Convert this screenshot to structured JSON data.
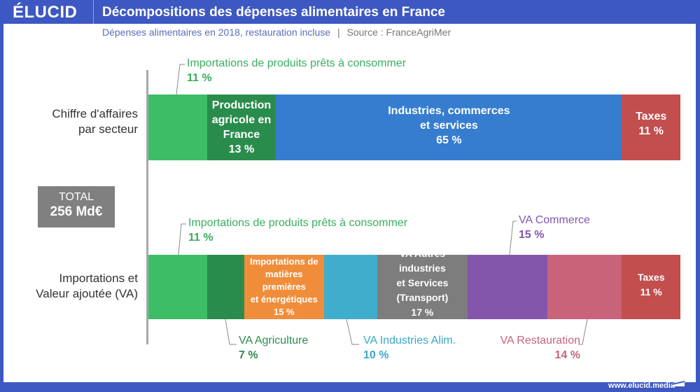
{
  "header": {
    "logo": "ÉLUCID",
    "title": "Décompositions des dépenses alimentaires en France",
    "subtitle": "Dépenses alimentaires en 2018, restauration incluse",
    "separator": "|",
    "source": "Source : FranceAgriMer"
  },
  "total": {
    "label": "TOTAL",
    "value": "256 Md€"
  },
  "footer": {
    "url": "www.elucid.media"
  },
  "chart_data": {
    "type": "stacked-bar-horizontal",
    "title": "Décompositions des dépenses alimentaires en France",
    "unit": "%",
    "total": "256 Md€",
    "bars": [
      {
        "name": "Chiffre d'affaires par secteur",
        "label_lines": [
          "Chiffre d'affaires",
          "par secteur"
        ],
        "segments": [
          {
            "name": "Importations de produits prêts à consommer",
            "value": 11,
            "pct_label": "11 %",
            "color": "#3dbd66",
            "label_position": "callout-above"
          },
          {
            "name": "Production agricole en France",
            "lines": [
              "Production",
              "agricole en",
              "France"
            ],
            "value": 13,
            "pct_label": "13 %",
            "color": "#2a8c4c",
            "label_position": "inside"
          },
          {
            "name": "Industries, commerces et services",
            "lines": [
              "Industries, commerces",
              "et services"
            ],
            "value": 65,
            "pct_label": "65 %",
            "color": "#367dd0",
            "label_position": "inside"
          },
          {
            "name": "Taxes",
            "lines": [
              "Taxes"
            ],
            "value": 11,
            "pct_label": "11 %",
            "color": "#c24e4e",
            "label_position": "inside"
          }
        ]
      },
      {
        "name": "Importations et Valeur ajoutée (VA)",
        "label_lines": [
          "Importations et",
          "Valeur ajoutée (VA)"
        ],
        "segments": [
          {
            "name": "Importations de produits prêts à consommer",
            "value": 11,
            "pct_label": "11 %",
            "color": "#3dbd66",
            "label_position": "callout-above"
          },
          {
            "name": "VA Agriculture",
            "value": 7,
            "pct_label": "7 %",
            "color": "#2a8c4c",
            "label_position": "callout-below"
          },
          {
            "name": "Importations de matières premières et énergétiques",
            "lines": [
              "Importations de",
              "matières premières",
              "et énergétiques"
            ],
            "value": 15,
            "pct_label": "15 %",
            "color": "#f08d3a",
            "label_position": "inside"
          },
          {
            "name": "VA Industries Alim.",
            "value": 10,
            "pct_label": "10 %",
            "color": "#3fadcc",
            "label_position": "callout-below"
          },
          {
            "name": "VA Autres industries et Services (Transport)",
            "lines": [
              "VA Autres industries",
              "et Services (Transport)"
            ],
            "value": 17,
            "pct_label": "17 %",
            "color": "#7d7d7d",
            "label_position": "inside"
          },
          {
            "name": "VA Commerce",
            "value": 15,
            "pct_label": "15 %",
            "color": "#8356ac",
            "label_position": "callout-above"
          },
          {
            "name": "VA Restauration",
            "value": 14,
            "pct_label": "14 %",
            "color": "#c9637a",
            "label_position": "callout-below"
          },
          {
            "name": "Taxes",
            "lines": [
              "Taxes"
            ],
            "value": 11,
            "pct_label": "11 %",
            "color": "#c24e4e",
            "label_position": "inside"
          }
        ]
      }
    ]
  }
}
